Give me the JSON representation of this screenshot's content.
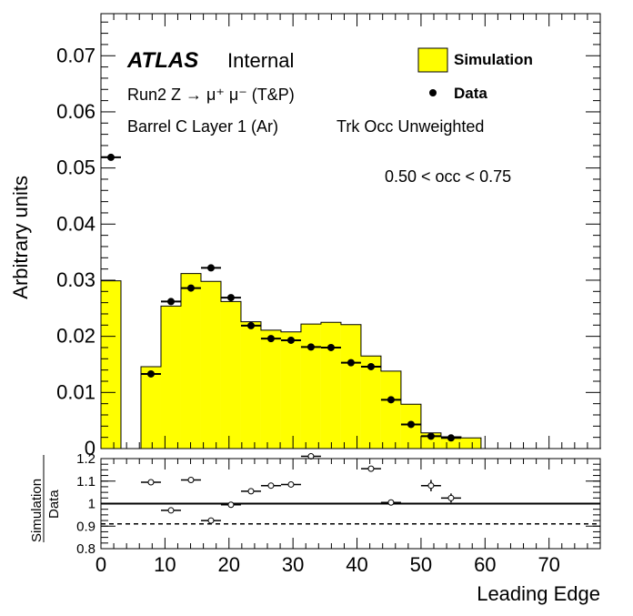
{
  "chart_data": [
    {
      "type": "bar",
      "panel": "main",
      "ylabel": "Arbitrary units",
      "ylim": [
        0,
        0.0775
      ],
      "xlim": [
        0,
        78
      ],
      "yticks": [
        "0",
        "0.01",
        "0.02",
        "0.03",
        "0.04",
        "0.05",
        "0.06",
        "0.07"
      ],
      "annotations": {
        "experiment": "ATLAS",
        "status": "Internal",
        "process": "Run2 Z → μ⁺ μ⁻ (T&P)",
        "region": "Barrel C Layer 1 (Ar)",
        "weighting": "Trk Occ Unweighted",
        "occupancy_cut": "0.50 < occ < 0.75"
      },
      "legend_position": "top-right",
      "bin_edges": [
        0,
        3.125,
        6.25,
        9.375,
        12.5,
        15.625,
        18.75,
        21.875,
        25,
        28.125,
        31.25,
        34.375,
        37.5,
        40.625,
        43.75,
        46.875,
        50,
        53.125,
        56.25,
        59.375,
        62.5,
        65.625,
        68.75,
        71.875,
        75,
        78.125
      ],
      "series": [
        {
          "name": "Simulation",
          "style": "filled-histogram",
          "color": "#ffff00",
          "values": [
            0.0299,
            0,
            0.0146,
            0.0254,
            0.0312,
            0.0298,
            0.0262,
            0.0226,
            0.0211,
            0.0208,
            0.0222,
            0.0225,
            0.0221,
            0.0165,
            0.0138,
            0.0079,
            0.0028,
            0.0021,
            0.0019,
            0,
            0,
            0,
            0,
            0,
            0
          ]
        },
        {
          "name": "Data",
          "style": "markers",
          "color": "#000000",
          "x": [
            1.56,
            7.81,
            10.94,
            14.06,
            17.19,
            20.31,
            23.44,
            26.56,
            29.69,
            32.81,
            35.94,
            39.06,
            42.19,
            45.31,
            48.44,
            51.56,
            54.69
          ],
          "values": [
            0.0519,
            0.0133,
            0.0262,
            0.0286,
            0.0322,
            0.0269,
            0.0219,
            0.0196,
            0.0193,
            0.0181,
            0.018,
            0.0153,
            0.0146,
            0.0087,
            0.0043,
            0.0022,
            0.0019
          ]
        }
      ]
    },
    {
      "type": "scatter",
      "panel": "ratio",
      "ylabel": "Simulation / Data",
      "ylabel_num": "Simulation",
      "ylabel_den": "Data",
      "xlabel": "Leading Edge",
      "xlim": [
        0,
        78
      ],
      "ylim": [
        0.8,
        1.2
      ],
      "xticks": [
        "0",
        "10",
        "20",
        "30",
        "40",
        "50",
        "60",
        "70"
      ],
      "yticks": [
        "0.8",
        "0.9",
        "1",
        "1.1",
        "1.2"
      ],
      "reference_lines": [
        {
          "value": 1.0,
          "style": "solid"
        },
        {
          "value": 0.91,
          "style": "dashed"
        }
      ],
      "points": {
        "x": [
          7.81,
          10.94,
          14.06,
          17.19,
          20.31,
          23.44,
          26.56,
          29.69,
          32.81,
          42.19,
          45.31,
          51.56,
          54.69
        ],
        "values": [
          1.095,
          0.97,
          1.105,
          0.925,
          0.995,
          1.055,
          1.08,
          1.085,
          1.21,
          1.155,
          1.005,
          1.08,
          1.025
        ],
        "yerr": [
          0.005,
          0.005,
          0.005,
          0.005,
          0.005,
          0.005,
          0.005,
          0.005,
          0.005,
          0.005,
          0.005,
          0.025,
          0.02
        ]
      }
    }
  ]
}
